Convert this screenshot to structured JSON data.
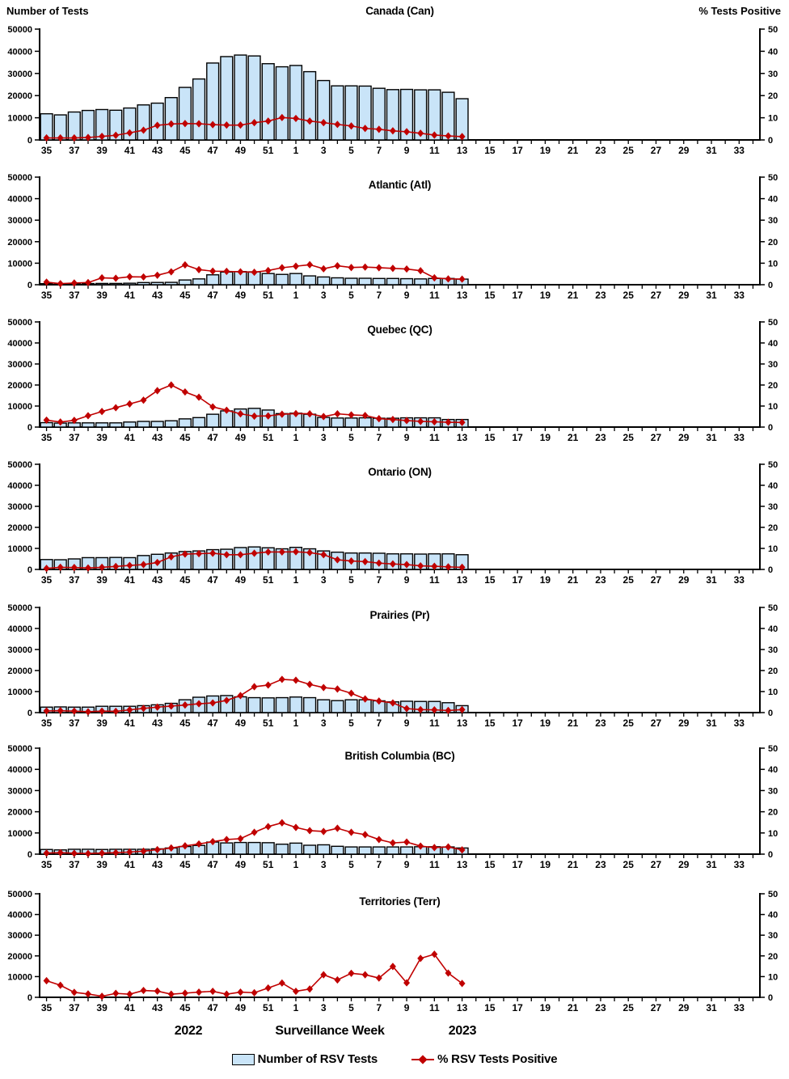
{
  "header": {
    "left_axis_title": "Number of Tests",
    "right_axis_title": "% Tests Positive"
  },
  "footer": {
    "year_left": "2022",
    "axis_title": "Surveillance Week",
    "year_right": "2023"
  },
  "legend": {
    "tests_label": "Number of RSV Tests",
    "pct_label": "% RSV Tests Positive"
  },
  "colors": {
    "bar_fill": "#C9E4F8",
    "bar_border": "#000000",
    "line": "#C00000",
    "text": "#000000"
  },
  "axis": {
    "weeks": [
      35,
      36,
      37,
      38,
      39,
      40,
      41,
      42,
      43,
      44,
      45,
      46,
      47,
      48,
      49,
      50,
      51,
      52,
      1,
      2,
      3,
      4,
      5,
      6,
      7,
      8,
      9,
      10,
      11,
      12,
      13,
      14,
      15,
      16,
      17,
      18,
      19,
      20,
      21,
      22,
      23,
      24,
      25,
      26,
      27,
      28,
      29,
      30,
      31,
      32,
      33,
      34
    ],
    "week_labels": [
      35,
      37,
      39,
      41,
      43,
      45,
      47,
      49,
      51,
      1,
      3,
      5,
      7,
      9,
      11,
      13,
      15,
      17,
      19,
      21,
      23,
      25,
      27,
      29,
      31,
      33
    ],
    "left_ticks": [
      0,
      10000,
      20000,
      30000,
      40000,
      50000
    ],
    "right_ticks": [
      0,
      10,
      20,
      30,
      40,
      50
    ],
    "left_max": 50000,
    "right_max": 50
  },
  "chart_data": [
    {
      "type": "bar",
      "title": "Canada (Can)",
      "series": [
        {
          "name": "Number of RSV Tests",
          "axis": "left",
          "values": [
            11800,
            11300,
            12600,
            13300,
            13700,
            13400,
            14400,
            15800,
            16600,
            19100,
            23700,
            27500,
            34700,
            37600,
            38300,
            37900,
            34400,
            33000,
            33600,
            30800,
            26800,
            24400,
            24400,
            24300,
            23300,
            22700,
            22800,
            22600,
            22600,
            21500,
            18600
          ]
        },
        {
          "name": "% RSV Tests Positive",
          "axis": "right",
          "values": [
            0.9,
            0.9,
            0.9,
            1.1,
            1.6,
            2.1,
            3.2,
            4.4,
            6.6,
            7.2,
            7.4,
            7.3,
            6.9,
            6.7,
            6.7,
            7.8,
            8.5,
            10.1,
            9.7,
            8.5,
            7.8,
            7.0,
            6.3,
            5.2,
            4.8,
            4.1,
            3.7,
            3.0,
            2.2,
            1.8,
            1.5
          ]
        }
      ]
    },
    {
      "type": "bar",
      "title": "Atlantic (Atl)",
      "series": [
        {
          "name": "Number of RSV Tests",
          "axis": "left",
          "values": [
            500,
            450,
            500,
            550,
            600,
            600,
            700,
            1000,
            1050,
            1100,
            2200,
            2700,
            4600,
            5900,
            6100,
            6000,
            5200,
            4800,
            5200,
            4100,
            3600,
            3200,
            3000,
            3000,
            2900,
            2900,
            2800,
            2700,
            2900,
            2900,
            2600
          ]
        },
        {
          "name": "% RSV Tests Positive",
          "axis": "right",
          "values": [
            1.2,
            0.5,
            0.8,
            1.0,
            3.2,
            3.0,
            3.7,
            3.6,
            4.4,
            6.0,
            9.2,
            7.0,
            6.3,
            6.2,
            6.0,
            5.8,
            6.6,
            7.9,
            8.6,
            9.3,
            7.4,
            8.8,
            8.0,
            8.2,
            7.9,
            7.6,
            7.3,
            6.5,
            3.2,
            2.7,
            2.6
          ]
        }
      ]
    },
    {
      "type": "bar",
      "title": "Quebec (QC)",
      "series": [
        {
          "name": "Number of RSV Tests",
          "axis": "left",
          "values": [
            2100,
            1900,
            2000,
            2000,
            2000,
            2000,
            2400,
            2700,
            2700,
            3000,
            3900,
            4500,
            6100,
            7700,
            8600,
            8900,
            8100,
            6400,
            6600,
            6100,
            4600,
            4300,
            4300,
            4400,
            4200,
            4200,
            4400,
            4400,
            4400,
            3600,
            3600
          ]
        },
        {
          "name": "% RSV Tests Positive",
          "axis": "right",
          "values": [
            3.3,
            2.4,
            3.2,
            5.4,
            7.4,
            9.2,
            11.0,
            12.8,
            17.3,
            20.0,
            16.7,
            14.2,
            9.6,
            8.0,
            6.3,
            5.2,
            5.3,
            6.1,
            6.4,
            6.3,
            5.0,
            6.3,
            5.8,
            5.5,
            4.0,
            3.6,
            3.1,
            2.7,
            2.5,
            2.3,
            2.2
          ]
        }
      ]
    },
    {
      "type": "bar",
      "title": "Ontario (ON)",
      "series": [
        {
          "name": "Number of RSV Tests",
          "axis": "left",
          "values": [
            4700,
            4600,
            5000,
            5600,
            5600,
            5700,
            5600,
            6600,
            7200,
            7800,
            8500,
            8800,
            9400,
            9600,
            10400,
            10700,
            10300,
            9800,
            10500,
            9800,
            8800,
            8200,
            7800,
            7800,
            7700,
            7400,
            7400,
            7300,
            7400,
            7400,
            7000
          ]
        },
        {
          "name": "% RSV Tests Positive",
          "axis": "right",
          "values": [
            0.5,
            1.0,
            0.9,
            0.7,
            1.0,
            1.4,
            1.9,
            2.3,
            3.3,
            6.0,
            7.3,
            7.5,
            7.7,
            7.0,
            7.0,
            7.7,
            8.3,
            8.3,
            8.4,
            8.0,
            7.0,
            4.6,
            4.0,
            3.7,
            3.0,
            2.6,
            2.3,
            1.7,
            1.5,
            1.2,
            1.0
          ]
        }
      ]
    },
    {
      "type": "bar",
      "title": "Prairies (Pr)",
      "series": [
        {
          "name": "Number of RSV Tests",
          "axis": "left",
          "values": [
            2600,
            2700,
            2600,
            2600,
            3000,
            3000,
            3000,
            3300,
            3700,
            4400,
            6100,
            7300,
            7900,
            8100,
            7500,
            7100,
            7000,
            7100,
            7400,
            7100,
            6100,
            5700,
            6100,
            6100,
            5600,
            5100,
            5400,
            5300,
            5300,
            4700,
            3300
          ]
        },
        {
          "name": "% RSV Tests Positive",
          "axis": "right",
          "values": [
            0.8,
            0.9,
            0.7,
            0.4,
            0.7,
            0.6,
            1.3,
            2.0,
            2.6,
            3.1,
            3.6,
            4.2,
            4.6,
            5.8,
            8.1,
            12.3,
            13.1,
            15.8,
            15.4,
            13.4,
            11.9,
            11.2,
            9.2,
            6.5,
            5.5,
            4.6,
            1.9,
            1.4,
            1.3,
            1.0,
            1.4
          ]
        }
      ]
    },
    {
      "type": "bar",
      "title": "British Columbia (BC)",
      "series": [
        {
          "name": "Number of RSV Tests",
          "axis": "left",
          "values": [
            2200,
            2000,
            2300,
            2300,
            2200,
            2300,
            2300,
            2300,
            2500,
            2900,
            3600,
            4100,
            5700,
            5300,
            5500,
            5500,
            5400,
            4700,
            5200,
            4200,
            4400,
            3700,
            3400,
            3400,
            3400,
            3400,
            3400,
            3500,
            3500,
            3400,
            2900
          ]
        },
        {
          "name": "% RSV Tests Positive",
          "axis": "right",
          "values": [
            0.5,
            0.7,
            0.4,
            0.3,
            0.5,
            0.7,
            1.0,
            1.4,
            2.1,
            2.9,
            3.9,
            4.8,
            5.9,
            6.9,
            7.3,
            10.3,
            13.0,
            14.8,
            12.6,
            11.1,
            10.7,
            12.2,
            10.3,
            9.2,
            6.9,
            5.3,
            5.7,
            3.8,
            3.1,
            3.4,
            2.0
          ]
        }
      ]
    },
    {
      "type": "bar",
      "title": "Territories (Terr)",
      "series": [
        {
          "name": "Number of RSV Tests",
          "axis": "left",
          "values": [
            60,
            50,
            40,
            50,
            60,
            50,
            60,
            70,
            60,
            60,
            80,
            90,
            110,
            120,
            120,
            110,
            100,
            90,
            100,
            90,
            80,
            70,
            80,
            80,
            70,
            70,
            70,
            70,
            70,
            60,
            60
          ]
        },
        {
          "name": "% RSV Tests Positive",
          "axis": "right",
          "values": [
            8.0,
            5.8,
            2.4,
            1.6,
            0.5,
            1.9,
            1.5,
            3.3,
            3.0,
            1.5,
            2.0,
            2.5,
            2.9,
            1.5,
            2.5,
            2.2,
            4.5,
            6.9,
            2.9,
            4.0,
            10.9,
            8.4,
            11.6,
            10.9,
            9.3,
            14.9,
            7.0,
            18.8,
            20.8,
            11.7,
            6.7
          ]
        }
      ]
    }
  ]
}
